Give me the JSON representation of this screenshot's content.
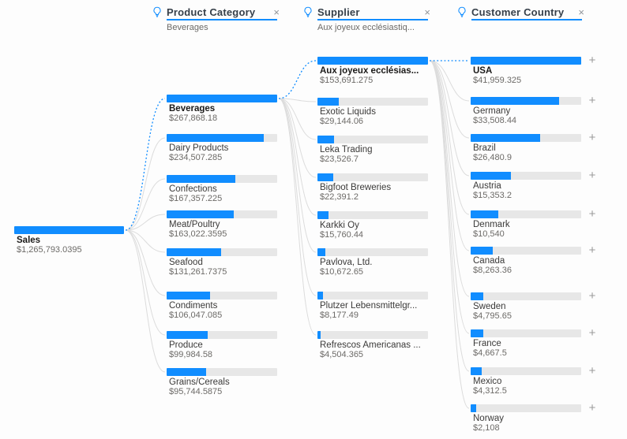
{
  "accent_color": "#118DFF",
  "headers": [
    {
      "label": "Product Category",
      "sublabel": "Beverages",
      "close": "×"
    },
    {
      "label": "Supplier",
      "sublabel": "Aux joyeux ecclésiastiq...",
      "close": "×"
    },
    {
      "label": "Customer Country",
      "sublabel": "",
      "close": "×"
    }
  ],
  "root": {
    "label": "Sales",
    "value": "$1,265,793.0395"
  },
  "columns": [
    {
      "field": "Product Category",
      "nodes": [
        {
          "label": "Beverages",
          "value": "$267,868.18",
          "selected": true
        },
        {
          "label": "Dairy Products",
          "value": "$234,507.285",
          "selected": false
        },
        {
          "label": "Confections",
          "value": "$167,357.225",
          "selected": false
        },
        {
          "label": "Meat/Poultry",
          "value": "$163,022.3595",
          "selected": false
        },
        {
          "label": "Seafood",
          "value": "$131,261.7375",
          "selected": false
        },
        {
          "label": "Condiments",
          "value": "$106,047.085",
          "selected": false
        },
        {
          "label": "Produce",
          "value": "$99,984.58",
          "selected": false
        },
        {
          "label": "Grains/Cereals",
          "value": "$95,744.5875",
          "selected": false
        }
      ]
    },
    {
      "field": "Supplier",
      "nodes": [
        {
          "label": "Aux joyeux ecclésias...",
          "value": "$153,691.275",
          "selected": true
        },
        {
          "label": "Exotic Liquids",
          "value": "$29,144.06",
          "selected": false
        },
        {
          "label": "Leka Trading",
          "value": "$23,526.7",
          "selected": false
        },
        {
          "label": "Bigfoot Breweries",
          "value": "$22,391.2",
          "selected": false
        },
        {
          "label": "Karkki Oy",
          "value": "$15,760.44",
          "selected": false
        },
        {
          "label": "Pavlova, Ltd.",
          "value": "$10,672.65",
          "selected": false
        },
        {
          "label": "Plutzer Lebensmittelgr...",
          "value": "$8,177.49",
          "selected": false
        },
        {
          "label": "Refrescos Americanas ...",
          "value": "$4,504.365",
          "selected": false
        }
      ]
    },
    {
      "field": "Customer Country",
      "expandable": true,
      "nodes": [
        {
          "label": "USA",
          "value": "$41,959.325",
          "selected": true
        },
        {
          "label": "Germany",
          "value": "$33,508.44",
          "selected": false
        },
        {
          "label": "Brazil",
          "value": "$26,480.9",
          "selected": false
        },
        {
          "label": "Austria",
          "value": "$15,353.2",
          "selected": false
        },
        {
          "label": "Denmark",
          "value": "$10,540",
          "selected": false
        },
        {
          "label": "Canada",
          "value": "$8,263.36",
          "selected": false
        },
        {
          "label": "Sweden",
          "value": "$4,795.65",
          "selected": false
        },
        {
          "label": "France",
          "value": "$4,667.5",
          "selected": false
        },
        {
          "label": "Mexico",
          "value": "$4,312.5",
          "selected": false
        },
        {
          "label": "Norway",
          "value": "$2,108",
          "selected": false
        }
      ]
    }
  ],
  "expand_button_glyph": "+",
  "chart_data": {
    "type": "bar",
    "title": "Sales decomposition tree",
    "measure": "Sales",
    "root": {
      "label": "Sales",
      "value": 1265793.0395
    },
    "levels": [
      {
        "field": "Product Category",
        "selected": "Beverages",
        "categories": [
          "Beverages",
          "Dairy Products",
          "Confections",
          "Meat/Poultry",
          "Seafood",
          "Condiments",
          "Produce",
          "Grains/Cereals"
        ],
        "values": [
          267868.18,
          234507.285,
          167357.225,
          163022.3595,
          131261.7375,
          106047.085,
          99984.58,
          95744.5875
        ]
      },
      {
        "field": "Supplier",
        "selected": "Aux joyeux ecclésias...",
        "categories": [
          "Aux joyeux ecclésias...",
          "Exotic Liquids",
          "Leka Trading",
          "Bigfoot Breweries",
          "Karkki Oy",
          "Pavlova, Ltd.",
          "Plutzer Lebensmittelgr...",
          "Refrescos Americanas ..."
        ],
        "values": [
          153691.275,
          29144.06,
          23526.7,
          22391.2,
          15760.44,
          10672.65,
          8177.49,
          4504.365
        ]
      },
      {
        "field": "Customer Country",
        "selected": "USA",
        "categories": [
          "USA",
          "Germany",
          "Brazil",
          "Austria",
          "Denmark",
          "Canada",
          "Sweden",
          "France",
          "Mexico",
          "Norway"
        ],
        "values": [
          41959.325,
          33508.44,
          26480.9,
          15353.2,
          10540,
          8263.36,
          4795.65,
          4667.5,
          4312.5,
          2108
        ]
      }
    ],
    "bar_color": "#118DFF",
    "track_color": "#E7E7E7"
  }
}
